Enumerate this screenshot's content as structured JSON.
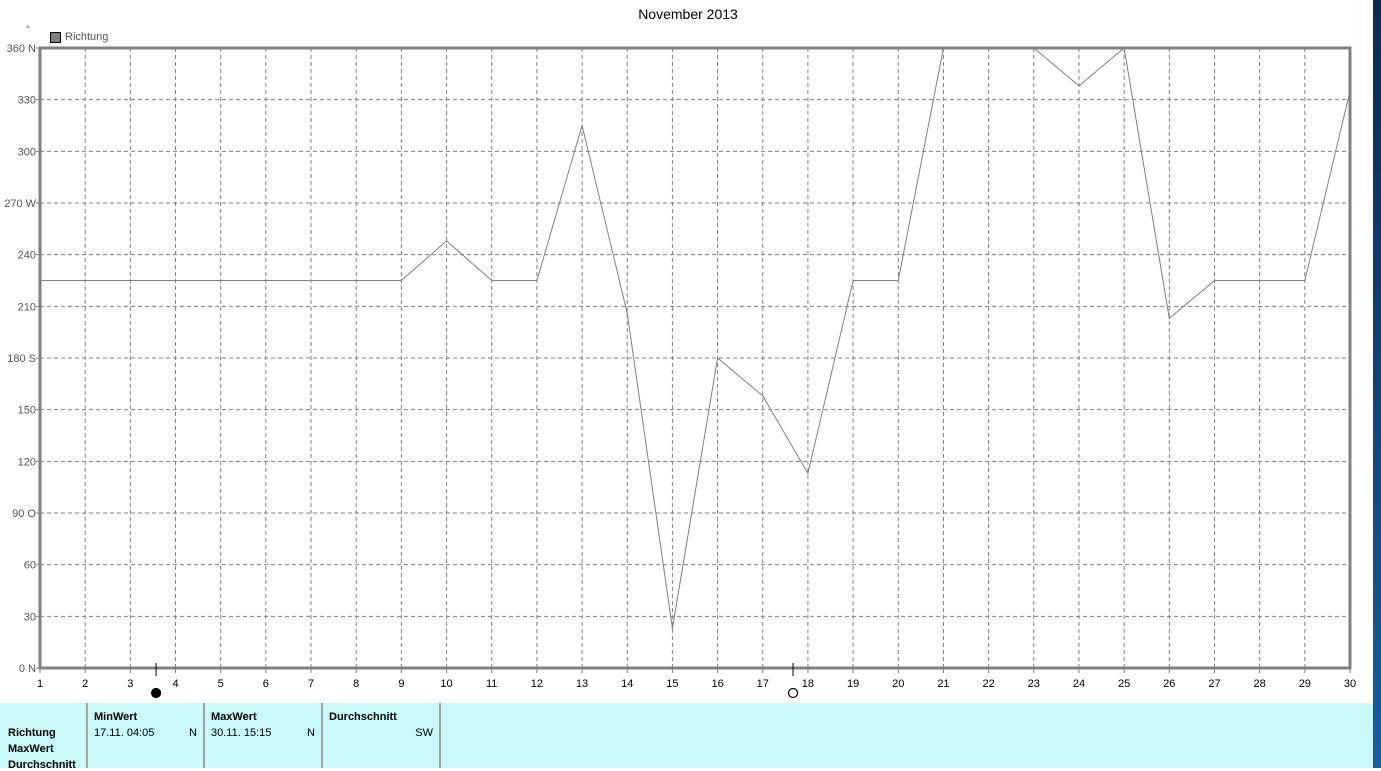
{
  "chart_data": {
    "type": "line",
    "title": "November 2013",
    "y_unit": "°",
    "x": [
      1,
      2,
      3,
      4,
      5,
      6,
      7,
      8,
      9,
      10,
      11,
      12,
      13,
      14,
      15,
      16,
      17,
      18,
      19,
      20,
      21,
      22,
      23,
      24,
      25,
      26,
      27,
      28,
      29,
      30
    ],
    "series": [
      {
        "name": "Richtung",
        "color": "#808080",
        "values": [
          225,
          225,
          225,
          225,
          225,
          225,
          225,
          225,
          225,
          248,
          225,
          225,
          315,
          206,
          23,
          180,
          158,
          113,
          225,
          225,
          360,
          360,
          360,
          338,
          360,
          203,
          225,
          225,
          225,
          335
        ]
      }
    ],
    "xlim": [
      1,
      30
    ],
    "ylim": [
      0,
      360
    ],
    "yticks": [
      {
        "v": 360,
        "label": "360 N"
      },
      {
        "v": 330,
        "label": "330"
      },
      {
        "v": 300,
        "label": "300"
      },
      {
        "v": 270,
        "label": "270 W"
      },
      {
        "v": 240,
        "label": "240"
      },
      {
        "v": 210,
        "label": "210"
      },
      {
        "v": 180,
        "label": "180 S"
      },
      {
        "v": 150,
        "label": "150"
      },
      {
        "v": 120,
        "label": "120"
      },
      {
        "v": 90,
        "label": "90  O"
      },
      {
        "v": 60,
        "label": "60"
      },
      {
        "v": 30,
        "label": "30"
      },
      {
        "v": 0,
        "label": "0   N"
      }
    ],
    "grid": true,
    "legend": "top-left",
    "moon_phases": [
      {
        "day": 3.57,
        "phase": "new-moon"
      },
      {
        "day": 17.67,
        "phase": "full-moon"
      }
    ]
  },
  "table": {
    "row_labels": [
      "Richtung",
      "MaxWert",
      "Durchschnitt"
    ],
    "columns": [
      {
        "header": "MinWert",
        "date": "17.11.  04:05",
        "value": "N"
      },
      {
        "header": "MaxWert",
        "date": "30.11.  15:15",
        "value": "N"
      },
      {
        "header": "Durchschnitt",
        "date": "",
        "value": "SW"
      }
    ]
  }
}
